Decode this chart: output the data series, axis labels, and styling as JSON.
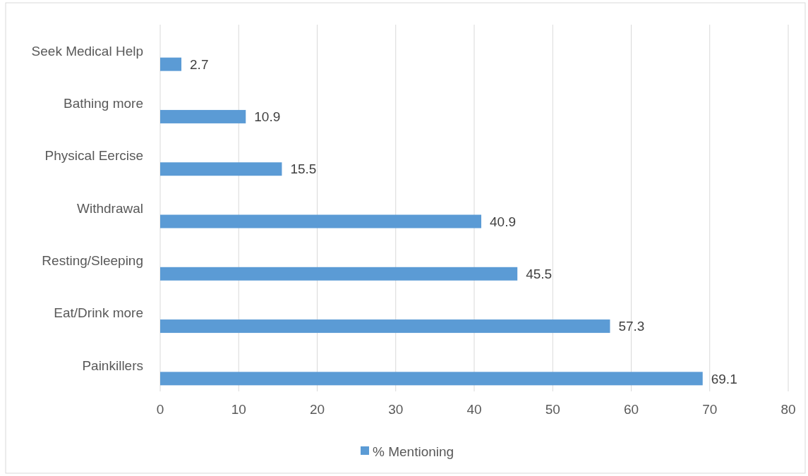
{
  "chart_data": {
    "type": "bar",
    "orientation": "horizontal",
    "categories": [
      "Seek Medical Help",
      "Bathing more",
      "Physical Eercise",
      "Withdrawal",
      "Resting/Sleeping",
      "Eat/Drink more",
      "Painkillers"
    ],
    "series": [
      {
        "name": "% Mentioning",
        "color": "#5b9bd5",
        "values": [
          2.7,
          10.9,
          15.5,
          40.9,
          45.5,
          57.3,
          69.1
        ]
      }
    ],
    "xlim": [
      0,
      80
    ],
    "xticks": [
      0,
      10,
      20,
      30,
      40,
      50,
      60,
      70,
      80
    ],
    "grid": "x",
    "legend": "bottom",
    "data_labels": true
  }
}
